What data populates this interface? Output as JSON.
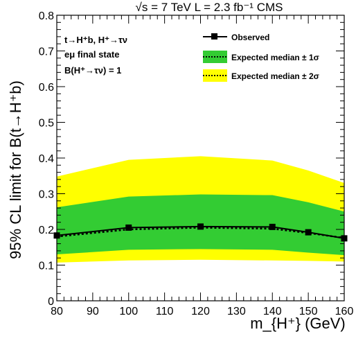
{
  "chart_data": {
    "type": "line",
    "title": "√s = 7 TeV   L = 2.3 fb⁻¹  CMS",
    "xlabel": "m_{H⁺} (GeV)",
    "ylabel": "95% CL limit for B(t→H⁺b)",
    "xlim": [
      80,
      160
    ],
    "ylim": [
      0,
      0.8
    ],
    "x_ticks": [
      80,
      90,
      100,
      110,
      120,
      130,
      140,
      150,
      160
    ],
    "y_ticks": [
      0,
      0.1,
      0.2,
      0.3,
      0.4,
      0.5,
      0.6,
      0.7,
      0.8
    ],
    "x_tick_labels": [
      "80",
      "90",
      "100",
      "110",
      "120",
      "130",
      "140",
      "150",
      "160"
    ],
    "y_tick_labels": [
      "0",
      "0.1",
      "0.2",
      "0.3",
      "0.4",
      "0.5",
      "0.6",
      "0.7",
      "0.8"
    ],
    "grid": false,
    "legend_position": "top-right",
    "annotations": [
      "t→H⁺b, H⁺→τν",
      "eμ final state",
      "B(H⁺→τν) = 1"
    ],
    "legend": {
      "observed": "Observed",
      "one_sigma": "Expected median ± 1σ",
      "two_sigma": "Expected median ± 2σ"
    },
    "colors": {
      "observed": "#000000",
      "one_sigma": "#33cc33",
      "two_sigma": "#ffff00",
      "expected": "#000000"
    },
    "x": [
      80,
      100,
      120,
      140,
      150,
      160
    ],
    "series": [
      {
        "name": "Observed",
        "values": [
          0.183,
          0.205,
          0.208,
          0.207,
          0.192,
          0.175
        ]
      },
      {
        "name": "Expected median",
        "values": [
          0.18,
          0.2,
          0.205,
          0.202,
          0.19,
          0.176
        ]
      }
    ],
    "bands": {
      "one_sigma": {
        "lower": [
          0.13,
          0.143,
          0.145,
          0.143,
          0.135,
          0.128
        ],
        "upper": [
          0.262,
          0.292,
          0.298,
          0.296,
          0.276,
          0.25
        ]
      },
      "two_sigma": {
        "lower": [
          0.107,
          0.113,
          0.115,
          0.113,
          0.112,
          0.11
        ],
        "upper": [
          0.348,
          0.395,
          0.405,
          0.393,
          0.365,
          0.33
        ]
      }
    }
  }
}
